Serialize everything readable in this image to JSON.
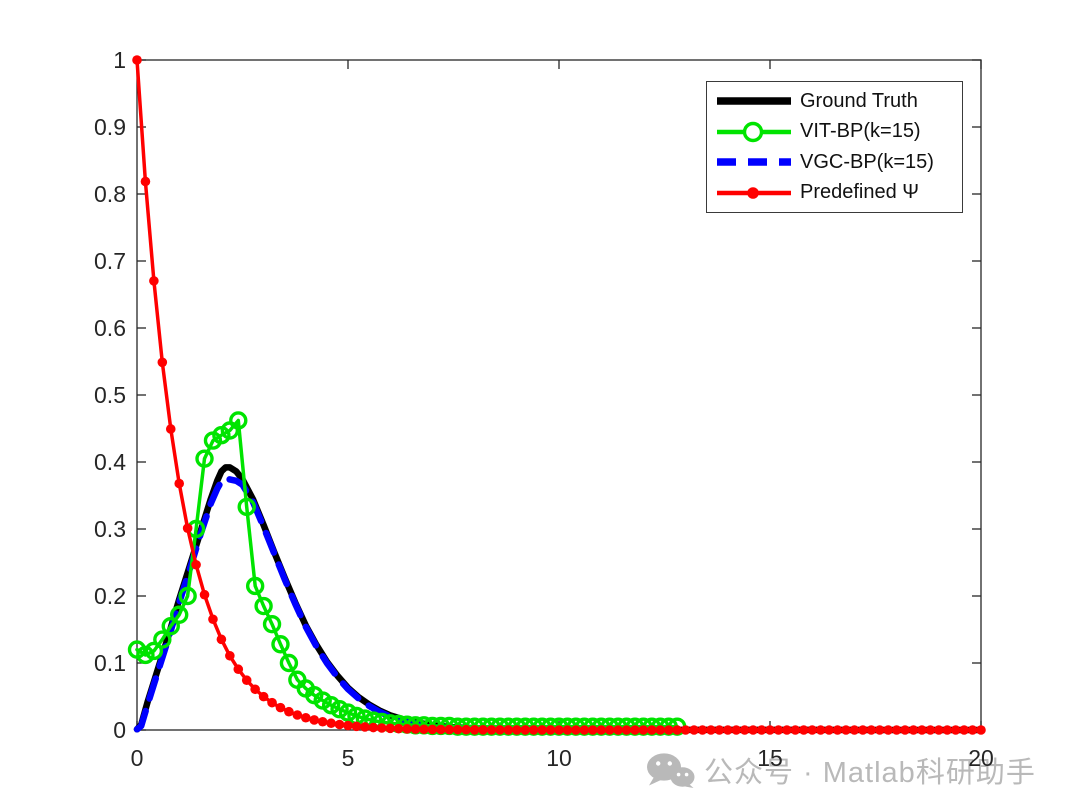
{
  "figure": {
    "background": "#ffffff",
    "axis_color": "#262626"
  },
  "watermark": {
    "text": "公众号 · Matlab科研助手",
    "color": "#b9b9b9",
    "icon": "wechat-icon"
  },
  "chart_data": {
    "type": "line",
    "title": "",
    "xlabel": "",
    "ylabel": "",
    "xlim": [
      0,
      20
    ],
    "ylim": [
      0,
      1
    ],
    "grid": false,
    "box": true,
    "tick_direction": "in",
    "legend_position": "top-right",
    "axis_color": "#262626",
    "x_ticks": [
      0,
      5,
      10,
      15,
      20
    ],
    "x_tick_labels": [
      "0",
      "5",
      "10",
      "15",
      "20"
    ],
    "y_ticks": [
      0,
      0.1,
      0.2,
      0.3,
      0.4,
      0.5,
      0.6,
      0.7,
      0.8,
      0.9,
      1
    ],
    "y_tick_labels": [
      "0",
      "0.1",
      "0.2",
      "0.3",
      "0.4",
      "0.5",
      "0.6",
      "0.7",
      "0.8",
      "0.9",
      "1"
    ],
    "legend_display_order": [
      0,
      2,
      1,
      3
    ],
    "series": [
      {
        "name": "Ground Truth",
        "color": "#000000",
        "style": "solid",
        "line_width": 6.5,
        "marker": "none",
        "points": [
          [
            0,
            0.001
          ],
          [
            0.1,
            0.008
          ],
          [
            0.25,
            0.042
          ],
          [
            0.4,
            0.072
          ],
          [
            0.5,
            0.092
          ],
          [
            0.75,
            0.142
          ],
          [
            1,
            0.195
          ],
          [
            1.25,
            0.245
          ],
          [
            1.5,
            0.295
          ],
          [
            1.75,
            0.345
          ],
          [
            1.9,
            0.372
          ],
          [
            2,
            0.386
          ],
          [
            2.1,
            0.392
          ],
          [
            2.2,
            0.392
          ],
          [
            2.35,
            0.386
          ],
          [
            2.5,
            0.374
          ],
          [
            2.75,
            0.344
          ],
          [
            3,
            0.306
          ],
          [
            3.25,
            0.266
          ],
          [
            3.5,
            0.227
          ],
          [
            3.75,
            0.19
          ],
          [
            4,
            0.156
          ],
          [
            4.25,
            0.127
          ],
          [
            4.5,
            0.102
          ],
          [
            4.75,
            0.081
          ],
          [
            5,
            0.063
          ],
          [
            5.25,
            0.049
          ],
          [
            5.5,
            0.038
          ],
          [
            5.75,
            0.029
          ],
          [
            6,
            0.022
          ],
          [
            6.25,
            0.017
          ],
          [
            6.5,
            0.013
          ],
          [
            6.75,
            0.01
          ],
          [
            7,
            0.007
          ],
          [
            7.5,
            0.004
          ],
          [
            8,
            0.0025
          ],
          [
            8.5,
            0.0015
          ],
          [
            9,
            0.001
          ],
          [
            10,
            0.0005
          ],
          [
            12,
            0.0002
          ],
          [
            14,
            0.0001
          ],
          [
            16,
            0.0001
          ],
          [
            18,
            0
          ],
          [
            20,
            0
          ]
        ]
      },
      {
        "name": "VGC-BP(k=15)",
        "color": "#0000ff",
        "style": "dashed",
        "line_width": 6.5,
        "marker": "none",
        "points": [
          [
            0,
            0.001
          ],
          [
            0.1,
            0.006
          ],
          [
            0.25,
            0.038
          ],
          [
            0.4,
            0.068
          ],
          [
            0.5,
            0.088
          ],
          [
            0.75,
            0.138
          ],
          [
            1,
            0.19
          ],
          [
            1.25,
            0.24
          ],
          [
            1.5,
            0.291
          ],
          [
            1.75,
            0.338
          ],
          [
            1.9,
            0.36
          ],
          [
            2,
            0.371
          ],
          [
            2.1,
            0.375
          ],
          [
            2.2,
            0.374
          ],
          [
            2.35,
            0.372
          ],
          [
            2.5,
            0.366
          ],
          [
            2.75,
            0.34
          ],
          [
            3,
            0.303
          ],
          [
            3.25,
            0.264
          ],
          [
            3.5,
            0.225
          ],
          [
            3.75,
            0.188
          ],
          [
            4,
            0.154
          ],
          [
            4.25,
            0.125
          ],
          [
            4.5,
            0.1
          ],
          [
            4.75,
            0.079
          ],
          [
            5,
            0.061
          ],
          [
            5.25,
            0.047
          ],
          [
            5.5,
            0.036
          ],
          [
            5.75,
            0.027
          ],
          [
            6,
            0.02
          ],
          [
            6.25,
            0.015
          ],
          [
            6.5,
            0.011
          ],
          [
            6.75,
            0.008
          ],
          [
            7,
            0.006
          ]
        ]
      },
      {
        "name": "VIT-BP(k=15)",
        "color": "#00e400",
        "style": "solid",
        "line_width": 3.5,
        "marker": "circle-open",
        "marker_size": 7.5,
        "marker_stroke": 3.4,
        "points": [
          [
            0,
            0.12
          ],
          [
            0.2,
            0.112
          ],
          [
            0.4,
            0.118
          ],
          [
            0.6,
            0.135
          ],
          [
            0.8,
            0.155
          ],
          [
            1,
            0.172
          ],
          [
            1.2,
            0.2
          ],
          [
            1.4,
            0.3
          ],
          [
            1.6,
            0.405
          ],
          [
            1.8,
            0.432
          ],
          [
            2,
            0.44
          ],
          [
            2.2,
            0.447
          ],
          [
            2.4,
            0.462
          ],
          [
            2.6,
            0.333
          ],
          [
            2.8,
            0.215
          ],
          [
            3,
            0.185
          ],
          [
            3.2,
            0.158
          ],
          [
            3.4,
            0.128
          ],
          [
            3.6,
            0.1
          ],
          [
            3.8,
            0.075
          ],
          [
            4,
            0.062
          ],
          [
            4.2,
            0.052
          ],
          [
            4.4,
            0.044
          ],
          [
            4.6,
            0.037
          ],
          [
            4.8,
            0.031
          ],
          [
            5,
            0.026
          ],
          [
            5.2,
            0.021
          ],
          [
            5.4,
            0.017
          ],
          [
            5.6,
            0.014
          ],
          [
            5.8,
            0.012
          ],
          [
            6,
            0.01
          ],
          [
            6.2,
            0.009
          ],
          [
            6.4,
            0.008
          ],
          [
            6.6,
            0.007
          ],
          [
            6.8,
            0.007
          ],
          [
            7,
            0.006
          ],
          [
            7.2,
            0.006
          ],
          [
            7.4,
            0.006
          ],
          [
            7.6,
            0.005
          ],
          [
            7.8,
            0.005
          ],
          [
            8,
            0.005
          ],
          [
            8.2,
            0.005
          ],
          [
            8.4,
            0.005
          ],
          [
            8.6,
            0.005
          ],
          [
            8.8,
            0.005
          ],
          [
            9,
            0.005
          ],
          [
            9.2,
            0.005
          ],
          [
            9.4,
            0.005
          ],
          [
            9.6,
            0.005
          ],
          [
            9.8,
            0.005
          ],
          [
            10,
            0.005
          ],
          [
            10.2,
            0.005
          ],
          [
            10.4,
            0.005
          ],
          [
            10.6,
            0.005
          ],
          [
            10.8,
            0.005
          ],
          [
            11,
            0.005
          ],
          [
            11.2,
            0.005
          ],
          [
            11.4,
            0.005
          ],
          [
            11.6,
            0.005
          ],
          [
            11.8,
            0.005
          ],
          [
            12,
            0.005
          ],
          [
            12.2,
            0.005
          ],
          [
            12.4,
            0.005
          ],
          [
            12.6,
            0.005
          ],
          [
            12.8,
            0.005
          ]
        ]
      },
      {
        "name": "Predefined Ψ",
        "color": "#ff0000",
        "style": "solid",
        "line_width": 3.5,
        "marker": "circle-filled",
        "marker_size": 4.8,
        "points": [
          [
            0,
            1
          ],
          [
            0.2,
            0.8187
          ],
          [
            0.4,
            0.6703
          ],
          [
            0.6,
            0.5488
          ],
          [
            0.8,
            0.4493
          ],
          [
            1,
            0.3679
          ],
          [
            1.2,
            0.3012
          ],
          [
            1.4,
            0.2466
          ],
          [
            1.6,
            0.2019
          ],
          [
            1.8,
            0.1653
          ],
          [
            2,
            0.1353
          ],
          [
            2.2,
            0.1108
          ],
          [
            2.4,
            0.0907
          ],
          [
            2.6,
            0.0743
          ],
          [
            2.8,
            0.0608
          ],
          [
            3,
            0.0498
          ],
          [
            3.2,
            0.0408
          ],
          [
            3.4,
            0.0334
          ],
          [
            3.6,
            0.0273
          ],
          [
            3.8,
            0.0224
          ],
          [
            4,
            0.0183
          ],
          [
            4.2,
            0.015
          ],
          [
            4.4,
            0.0123
          ],
          [
            4.6,
            0.0101
          ],
          [
            4.8,
            0.0082
          ],
          [
            5,
            0.0067
          ],
          [
            5.2,
            0.0055
          ],
          [
            5.4,
            0.0045
          ],
          [
            5.6,
            0.0037
          ],
          [
            5.8,
            0.003
          ],
          [
            6,
            0.0025
          ],
          [
            6.2,
            0.002
          ],
          [
            6.4,
            0.0017
          ],
          [
            6.6,
            0.0014
          ],
          [
            6.8,
            0.0011
          ],
          [
            7,
            0.0009
          ],
          [
            7.2,
            0.0007
          ],
          [
            7.4,
            0.0006
          ],
          [
            7.6,
            0.0005
          ],
          [
            7.8,
            0.0004
          ],
          [
            8,
            0.0003
          ],
          [
            8.2,
            0.0003
          ],
          [
            8.4,
            0.0002
          ],
          [
            8.6,
            0.0002
          ],
          [
            8.8,
            0.0001
          ],
          [
            9,
            0.0001
          ],
          [
            9.2,
            0.0001
          ],
          [
            9.4,
            0.0001
          ],
          [
            9.6,
            0.0001
          ],
          [
            9.8,
            0.0001
          ],
          [
            10,
            0
          ],
          [
            10.2,
            0
          ],
          [
            10.4,
            0
          ],
          [
            10.6,
            0
          ],
          [
            10.8,
            0
          ],
          [
            11,
            0
          ],
          [
            11.2,
            0
          ],
          [
            11.4,
            0
          ],
          [
            11.6,
            0
          ],
          [
            11.8,
            0
          ],
          [
            12,
            0
          ],
          [
            12.2,
            0
          ],
          [
            12.4,
            0
          ],
          [
            12.6,
            0
          ],
          [
            12.8,
            0
          ],
          [
            13,
            0
          ],
          [
            13.2,
            0
          ],
          [
            13.4,
            0
          ],
          [
            13.6,
            0
          ],
          [
            13.8,
            0
          ],
          [
            14,
            0
          ],
          [
            14.2,
            0
          ],
          [
            14.4,
            0
          ],
          [
            14.6,
            0
          ],
          [
            14.8,
            0
          ],
          [
            15,
            0
          ],
          [
            15.2,
            0
          ],
          [
            15.4,
            0
          ],
          [
            15.6,
            0
          ],
          [
            15.8,
            0
          ],
          [
            16,
            0
          ],
          [
            16.2,
            0
          ],
          [
            16.4,
            0
          ],
          [
            16.6,
            0
          ],
          [
            16.8,
            0
          ],
          [
            17,
            0
          ],
          [
            17.2,
            0
          ],
          [
            17.4,
            0
          ],
          [
            17.6,
            0
          ],
          [
            17.8,
            0
          ],
          [
            18,
            0
          ],
          [
            18.2,
            0
          ],
          [
            18.4,
            0
          ],
          [
            18.6,
            0
          ],
          [
            18.8,
            0
          ],
          [
            19,
            0
          ],
          [
            19.2,
            0
          ],
          [
            19.4,
            0
          ],
          [
            19.6,
            0
          ],
          [
            19.8,
            0
          ],
          [
            20,
            0
          ]
        ]
      }
    ]
  }
}
